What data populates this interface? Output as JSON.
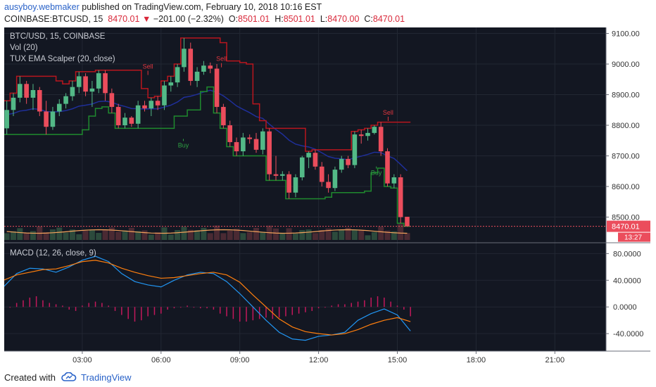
{
  "header": {
    "username": "ausyboy.webmaker",
    "published_text": " published on TradingView.com, February 10, 2018 10:16 EST",
    "symbol": "COINBASE:BTCUSD, 15",
    "last": "8470.01",
    "change": "−201.00 (−2.32%)",
    "o_label": "O:",
    "o_value": "8501.01",
    "h_label": "H:",
    "h_value": "8501.01",
    "l_label": "L:",
    "l_value": "8470.00",
    "c_label": "C:",
    "c_value": "8470.01"
  },
  "footer": {
    "created_with": "Created with",
    "brand": "TradingView"
  },
  "colors": {
    "background": "#131722",
    "up": "#53b987",
    "down": "#eb4d5c",
    "resistance": "#b9161e",
    "support": "#1f8a2e",
    "ema": "#1f2f9a",
    "macd": "#2196f3",
    "signal": "#ff7f0e",
    "hist": "#c2185b",
    "volume_ma": "#f5a35c"
  },
  "chart_data": [
    {
      "type": "candlestick",
      "title": "BTC/USD, 15, COINBASE",
      "indicator_labels": [
        "Vol (20)",
        "TUX EMA Scalper (20, close)"
      ],
      "x_ticks": [
        "03:00",
        "06:00",
        "09:00",
        "12:00",
        "15:00",
        "18:00",
        "21:00"
      ],
      "y_ticks": [
        "9100.00",
        "9000.00",
        "8900.00",
        "8800.00",
        "8700.00",
        "8600.00",
        "8500.00"
      ],
      "ylim": [
        8430,
        9115
      ],
      "last_price_label": "8470.01",
      "countdown_label": "13:27",
      "signals": [
        {
          "label": "Sell",
          "time": 5.5,
          "price": 8985
        },
        {
          "label": "Sell",
          "time": 8.3,
          "price": 9010
        },
        {
          "label": "Buy",
          "time": 6.85,
          "price": 8760
        },
        {
          "label": "Buy",
          "time": 14.2,
          "price": 8670
        },
        {
          "label": "Sell",
          "time": 14.65,
          "price": 8835
        }
      ],
      "candles": [
        {
          "t": 0.125,
          "o": 8790,
          "h": 8880,
          "l": 8770,
          "c": 8850
        },
        {
          "t": 0.375,
          "o": 8850,
          "h": 8905,
          "l": 8830,
          "c": 8890
        },
        {
          "t": 0.625,
          "o": 8890,
          "h": 8960,
          "l": 8875,
          "c": 8935
        },
        {
          "t": 0.875,
          "o": 8935,
          "h": 8945,
          "l": 8870,
          "c": 8890
        },
        {
          "t": 1.125,
          "o": 8890,
          "h": 8935,
          "l": 8850,
          "c": 8915
        },
        {
          "t": 1.375,
          "o": 8915,
          "h": 8925,
          "l": 8830,
          "c": 8845
        },
        {
          "t": 1.625,
          "o": 8845,
          "h": 8880,
          "l": 8770,
          "c": 8795
        },
        {
          "t": 1.875,
          "o": 8795,
          "h": 8860,
          "l": 8785,
          "c": 8845
        },
        {
          "t": 2.125,
          "o": 8845,
          "h": 8885,
          "l": 8830,
          "c": 8870
        },
        {
          "t": 2.375,
          "o": 8870,
          "h": 8905,
          "l": 8855,
          "c": 8895
        },
        {
          "t": 2.625,
          "o": 8895,
          "h": 8945,
          "l": 8880,
          "c": 8925
        },
        {
          "t": 2.875,
          "o": 8925,
          "h": 8975,
          "l": 8905,
          "c": 8960
        },
        {
          "t": 3.125,
          "o": 8960,
          "h": 8970,
          "l": 8895,
          "c": 8910
        },
        {
          "t": 3.375,
          "o": 8910,
          "h": 8945,
          "l": 8860,
          "c": 8920
        },
        {
          "t": 3.625,
          "o": 8920,
          "h": 8980,
          "l": 8905,
          "c": 8970
        },
        {
          "t": 3.875,
          "o": 8970,
          "h": 8980,
          "l": 8880,
          "c": 8905
        },
        {
          "t": 4.125,
          "o": 8905,
          "h": 8920,
          "l": 8840,
          "c": 8860
        },
        {
          "t": 4.375,
          "o": 8860,
          "h": 8870,
          "l": 8790,
          "c": 8800
        },
        {
          "t": 4.625,
          "o": 8800,
          "h": 8840,
          "l": 8790,
          "c": 8825
        },
        {
          "t": 4.875,
          "o": 8825,
          "h": 8830,
          "l": 8795,
          "c": 8805
        },
        {
          "t": 5.125,
          "o": 8805,
          "h": 8880,
          "l": 8790,
          "c": 8865
        },
        {
          "t": 5.375,
          "o": 8865,
          "h": 8880,
          "l": 8845,
          "c": 8855
        },
        {
          "t": 5.625,
          "o": 8855,
          "h": 8890,
          "l": 8830,
          "c": 8880
        },
        {
          "t": 5.875,
          "o": 8880,
          "h": 8895,
          "l": 8850,
          "c": 8865
        },
        {
          "t": 6.125,
          "o": 8865,
          "h": 8945,
          "l": 8850,
          "c": 8930
        },
        {
          "t": 6.375,
          "o": 8930,
          "h": 8960,
          "l": 8910,
          "c": 8940
        },
        {
          "t": 6.625,
          "o": 8940,
          "h": 9000,
          "l": 8925,
          "c": 8990
        },
        {
          "t": 6.875,
          "o": 8990,
          "h": 9085,
          "l": 8975,
          "c": 9050
        },
        {
          "t": 7.125,
          "o": 9050,
          "h": 9070,
          "l": 8930,
          "c": 8945
        },
        {
          "t": 7.375,
          "o": 8945,
          "h": 8990,
          "l": 8925,
          "c": 8975
        },
        {
          "t": 7.625,
          "o": 8975,
          "h": 9010,
          "l": 8965,
          "c": 8995
        },
        {
          "t": 7.875,
          "o": 8995,
          "h": 9005,
          "l": 8970,
          "c": 8985
        },
        {
          "t": 8.125,
          "o": 8985,
          "h": 9000,
          "l": 8840,
          "c": 8860
        },
        {
          "t": 8.375,
          "o": 8860,
          "h": 8870,
          "l": 8790,
          "c": 8800
        },
        {
          "t": 8.625,
          "o": 8800,
          "h": 8815,
          "l": 8730,
          "c": 8745
        },
        {
          "t": 8.875,
          "o": 8745,
          "h": 8760,
          "l": 8700,
          "c": 8715
        },
        {
          "t": 9.125,
          "o": 8715,
          "h": 8775,
          "l": 8700,
          "c": 8760
        },
        {
          "t": 9.375,
          "o": 8760,
          "h": 8770,
          "l": 8740,
          "c": 8755
        },
        {
          "t": 9.625,
          "o": 8755,
          "h": 8775,
          "l": 8710,
          "c": 8720
        },
        {
          "t": 9.875,
          "o": 8720,
          "h": 8790,
          "l": 8705,
          "c": 8780
        },
        {
          "t": 10.125,
          "o": 8780,
          "h": 8790,
          "l": 8620,
          "c": 8640
        },
        {
          "t": 10.375,
          "o": 8640,
          "h": 8700,
          "l": 8620,
          "c": 8635
        },
        {
          "t": 10.625,
          "o": 8635,
          "h": 8650,
          "l": 8620,
          "c": 8640
        },
        {
          "t": 10.875,
          "o": 8640,
          "h": 8650,
          "l": 8560,
          "c": 8580
        },
        {
          "t": 11.125,
          "o": 8580,
          "h": 8640,
          "l": 8565,
          "c": 8630
        },
        {
          "t": 11.375,
          "o": 8630,
          "h": 8700,
          "l": 8620,
          "c": 8695
        },
        {
          "t": 11.625,
          "o": 8695,
          "h": 8715,
          "l": 8660,
          "c": 8710
        },
        {
          "t": 11.875,
          "o": 8710,
          "h": 8720,
          "l": 8655,
          "c": 8665
        },
        {
          "t": 12.125,
          "o": 8665,
          "h": 8680,
          "l": 8600,
          "c": 8615
        },
        {
          "t": 12.375,
          "o": 8615,
          "h": 8640,
          "l": 8580,
          "c": 8595
        },
        {
          "t": 12.625,
          "o": 8595,
          "h": 8665,
          "l": 8585,
          "c": 8655
        },
        {
          "t": 12.875,
          "o": 8655,
          "h": 8700,
          "l": 8645,
          "c": 8690
        },
        {
          "t": 13.125,
          "o": 8690,
          "h": 8700,
          "l": 8660,
          "c": 8670
        },
        {
          "t": 13.375,
          "o": 8670,
          "h": 8780,
          "l": 8660,
          "c": 8770
        },
        {
          "t": 13.625,
          "o": 8770,
          "h": 8785,
          "l": 8740,
          "c": 8765
        },
        {
          "t": 13.875,
          "o": 8765,
          "h": 8790,
          "l": 8750,
          "c": 8775
        },
        {
          "t": 14.125,
          "o": 8775,
          "h": 8800,
          "l": 8770,
          "c": 8795
        },
        {
          "t": 14.375,
          "o": 8795,
          "h": 8810,
          "l": 8700,
          "c": 8715
        },
        {
          "t": 14.625,
          "o": 8715,
          "h": 8725,
          "l": 8600,
          "c": 8610
        },
        {
          "t": 14.875,
          "o": 8610,
          "h": 8640,
          "l": 8595,
          "c": 8630
        },
        {
          "t": 15.125,
          "o": 8630,
          "h": 8640,
          "l": 8480,
          "c": 8500
        },
        {
          "t": 15.375,
          "o": 8501.01,
          "h": 8501.01,
          "l": 8470.0,
          "c": 8470.01
        }
      ]
    },
    {
      "type": "line",
      "title": "MACD (12, 26, close, 9)",
      "y_ticks": [
        "80.0000",
        "40.0000",
        "0.0000",
        "-40.0000"
      ],
      "ylim": [
        -62,
        92
      ],
      "series": [
        {
          "values": [
            [
              0,
              30
            ],
            [
              0.5,
              50
            ],
            [
              1,
              58
            ],
            [
              1.5,
              57
            ],
            [
              2,
              52
            ],
            [
              2.5,
              60
            ],
            [
              3,
              70
            ],
            [
              3.5,
              76
            ],
            [
              4,
              68
            ],
            [
              4.5,
              50
            ],
            [
              5,
              38
            ],
            [
              5.5,
              33
            ],
            [
              6,
              30
            ],
            [
              6.5,
              40
            ],
            [
              7,
              48
            ],
            [
              7.5,
              52
            ],
            [
              8,
              50
            ],
            [
              8.5,
              38
            ],
            [
              9,
              20
            ],
            [
              9.5,
              0
            ],
            [
              10,
              -20
            ],
            [
              10.5,
              -38
            ],
            [
              11,
              -48
            ],
            [
              11.5,
              -50
            ],
            [
              12,
              -44
            ],
            [
              12.5,
              -42
            ],
            [
              13,
              -38
            ],
            [
              13.5,
              -20
            ],
            [
              14,
              -10
            ],
            [
              14.5,
              -3
            ],
            [
              15,
              -12
            ],
            [
              15.5,
              -36
            ]
          ]
        },
        {
          "values": [
            [
              0,
              40
            ],
            [
              0.5,
              48
            ],
            [
              1,
              52
            ],
            [
              1.5,
              56
            ],
            [
              2,
              57
            ],
            [
              2.5,
              62
            ],
            [
              3,
              68
            ],
            [
              3.5,
              70
            ],
            [
              4,
              66
            ],
            [
              4.5,
              58
            ],
            [
              5,
              52
            ],
            [
              5.5,
              47
            ],
            [
              6,
              43
            ],
            [
              6.5,
              44
            ],
            [
              7,
              47
            ],
            [
              7.5,
              50
            ],
            [
              8,
              52
            ],
            [
              8.5,
              48
            ],
            [
              9,
              37
            ],
            [
              9.5,
              18
            ],
            [
              10,
              0
            ],
            [
              10.5,
              -18
            ],
            [
              11,
              -30
            ],
            [
              11.5,
              -37
            ],
            [
              12,
              -40
            ],
            [
              12.5,
              -42
            ],
            [
              13,
              -40
            ],
            [
              13.5,
              -34
            ],
            [
              14,
              -26
            ],
            [
              14.5,
              -20
            ],
            [
              15,
              -16
            ],
            [
              15.5,
              -22
            ]
          ]
        }
      ],
      "histogram": [
        [
          0,
          -4
        ],
        [
          0.25,
          0
        ],
        [
          0.5,
          6
        ],
        [
          0.75,
          10
        ],
        [
          1,
          14
        ],
        [
          1.25,
          16
        ],
        [
          1.5,
          10
        ],
        [
          1.75,
          6
        ],
        [
          2,
          4
        ],
        [
          2.25,
          2
        ],
        [
          2.5,
          -4
        ],
        [
          2.75,
          -6
        ],
        [
          3,
          2
        ],
        [
          3.25,
          6
        ],
        [
          3.5,
          8
        ],
        [
          3.75,
          6
        ],
        [
          4,
          2
        ],
        [
          4.25,
          -6
        ],
        [
          4.5,
          -12
        ],
        [
          4.75,
          -18
        ],
        [
          5,
          -22
        ],
        [
          5.25,
          -20
        ],
        [
          5.5,
          -14
        ],
        [
          5.75,
          -12
        ],
        [
          6,
          -10
        ],
        [
          6.25,
          -4
        ],
        [
          6.5,
          -2
        ],
        [
          6.75,
          0
        ],
        [
          7,
          2
        ],
        [
          7.25,
          0
        ],
        [
          7.5,
          -2
        ],
        [
          7.75,
          -2
        ],
        [
          8,
          -4
        ],
        [
          8.25,
          -10
        ],
        [
          8.5,
          -14
        ],
        [
          8.75,
          -18
        ],
        [
          9,
          -22
        ],
        [
          9.25,
          -22
        ],
        [
          9.5,
          -20
        ],
        [
          9.75,
          -18
        ],
        [
          10,
          -16
        ],
        [
          10.25,
          -18
        ],
        [
          10.5,
          -16
        ],
        [
          10.75,
          -14
        ],
        [
          11,
          -12
        ],
        [
          11.25,
          -10
        ],
        [
          11.5,
          -8
        ],
        [
          11.75,
          -6
        ],
        [
          12,
          -2
        ],
        [
          12.25,
          0
        ],
        [
          12.5,
          2
        ],
        [
          12.75,
          4
        ],
        [
          13,
          4
        ],
        [
          13.25,
          6
        ],
        [
          13.5,
          8
        ],
        [
          13.75,
          10
        ],
        [
          14,
          14
        ],
        [
          14.25,
          16
        ],
        [
          14.5,
          14
        ],
        [
          14.75,
          8
        ],
        [
          15,
          2
        ],
        [
          15.25,
          -4
        ],
        [
          15.5,
          -14
        ]
      ]
    }
  ]
}
